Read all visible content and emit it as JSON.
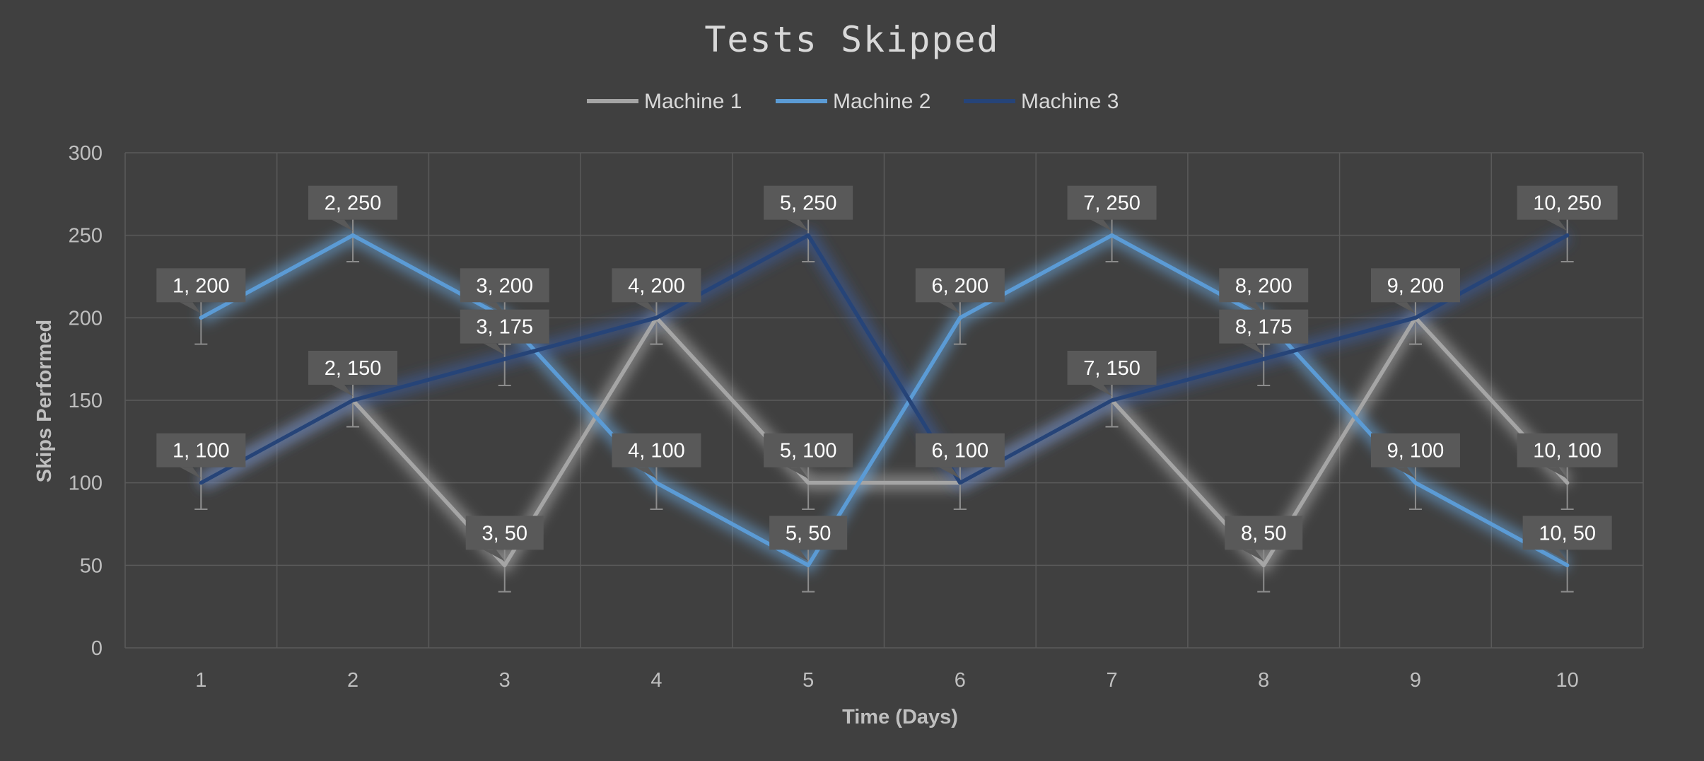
{
  "chart_data": {
    "type": "line",
    "title": "Tests Skipped",
    "xlabel": "Time (Days)",
    "ylabel": "Skips Performed",
    "x": [
      1,
      2,
      3,
      4,
      5,
      6,
      7,
      8,
      9,
      10
    ],
    "xlim": [
      0.5,
      10.5
    ],
    "ylim": [
      0,
      300
    ],
    "yticks": [
      0,
      50,
      100,
      150,
      200,
      250,
      300
    ],
    "grid": true,
    "legend": "top-center",
    "error_bar": 16,
    "series": [
      {
        "name": "Machine 1",
        "color": "#A5A5A5",
        "values": [
          100,
          150,
          50,
          200,
          100,
          100,
          150,
          50,
          200,
          100
        ]
      },
      {
        "name": "Machine 2",
        "color": "#5B9BD5",
        "values": [
          200,
          250,
          200,
          100,
          50,
          200,
          250,
          200,
          100,
          50
        ]
      },
      {
        "name": "Machine 3",
        "color": "#264478",
        "values": [
          100,
          150,
          175,
          200,
          250,
          100,
          150,
          175,
          200,
          250
        ]
      }
    ]
  }
}
